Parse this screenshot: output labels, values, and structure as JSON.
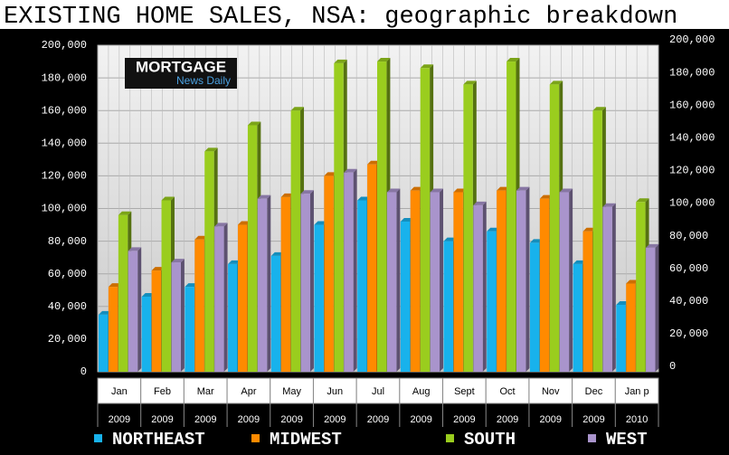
{
  "chart_data": {
    "type": "bar",
    "title": "EXISTING HOME SALES, NSA: geographic breakdown",
    "logo": {
      "line1": "MORTGAGE",
      "line2": "News Daily"
    },
    "categories": [
      "Jan",
      "Feb",
      "Mar",
      "Apr",
      "May",
      "Jun",
      "Jul",
      "Aug",
      "Sept",
      "Oct",
      "Nov",
      "Dec",
      "Jan p"
    ],
    "years": [
      "2009",
      "2009",
      "2009",
      "2009",
      "2009",
      "2009",
      "2009",
      "2009",
      "2009",
      "2009",
      "2009",
      "2009",
      "2010"
    ],
    "series": [
      {
        "name": "NORTHEAST",
        "color": "#18b2ec",
        "values": [
          35000,
          46000,
          52000,
          66000,
          71000,
          90000,
          105000,
          92000,
          80000,
          86000,
          79000,
          66000,
          41000
        ]
      },
      {
        "name": "MIDWEST",
        "color": "#ff8a00",
        "values": [
          52000,
          62000,
          81000,
          90000,
          107000,
          120000,
          127000,
          111000,
          110000,
          111000,
          106000,
          86000,
          54000
        ]
      },
      {
        "name": "SOUTH",
        "color": "#9acd1e",
        "values": [
          96000,
          105000,
          135000,
          151000,
          160000,
          189000,
          190000,
          186000,
          176000,
          190000,
          176000,
          160000,
          104000
        ]
      },
      {
        "name": "WEST",
        "color": "#a994cc",
        "values": [
          74000,
          67000,
          89000,
          106000,
          109000,
          122000,
          110000,
          110000,
          102000,
          111000,
          110000,
          101000,
          76000
        ]
      }
    ],
    "ylim": [
      0,
      200000
    ],
    "yticks": [
      0,
      {
        "value": 20000,
        "label": "20,000"
      },
      {
        "value": 40000,
        "label": "40,000"
      },
      {
        "value": 60000,
        "label": "60,000"
      },
      {
        "value": 80000,
        "label": "80,000"
      },
      {
        "value": 100000,
        "label": "100,000"
      },
      {
        "value": 120000,
        "label": "120,000"
      },
      {
        "value": 140000,
        "label": "140,000"
      },
      {
        "value": 160000,
        "label": "160,000"
      },
      {
        "value": 180000,
        "label": "180,000"
      },
      {
        "value": 200000,
        "label": "200,000"
      }
    ],
    "grid": true
  }
}
